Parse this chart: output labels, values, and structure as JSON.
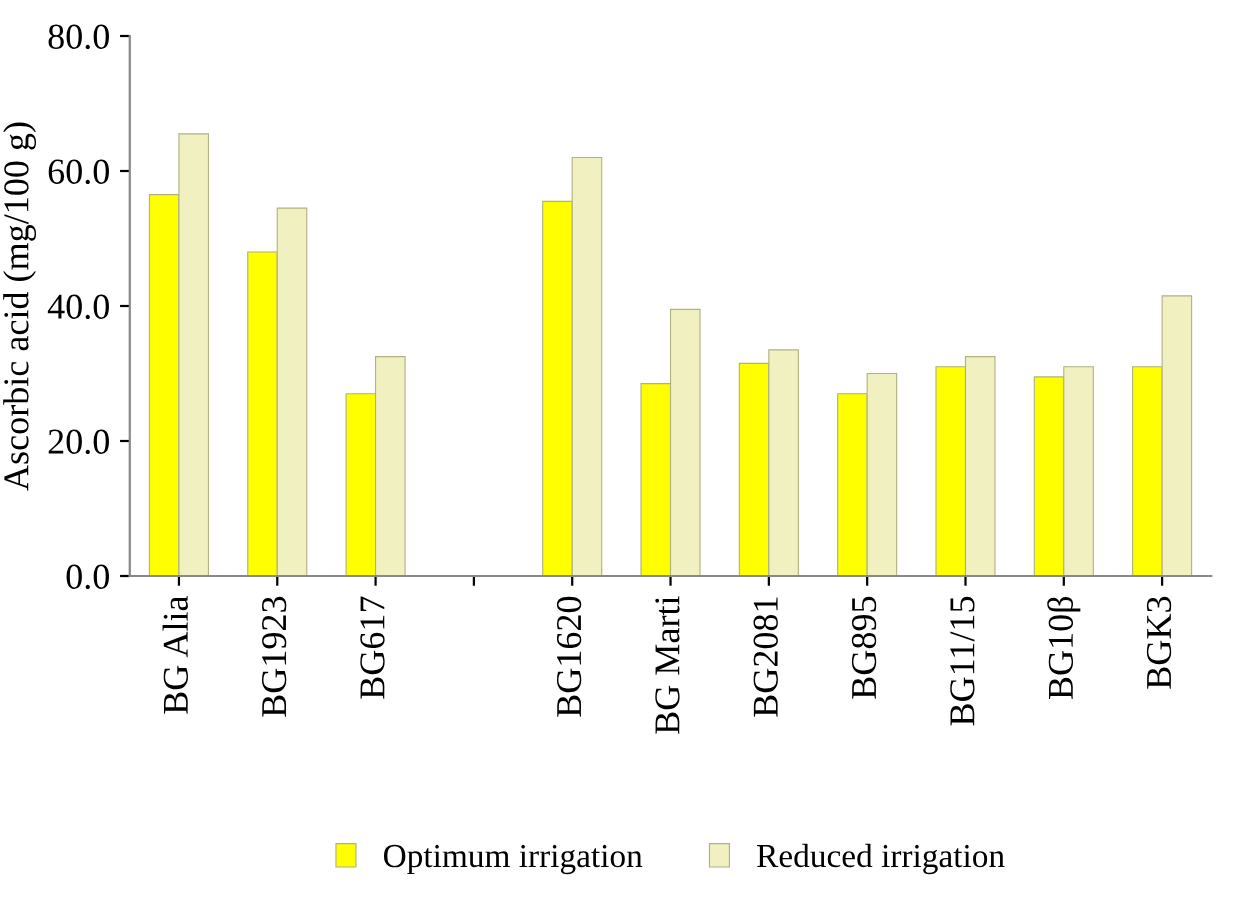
{
  "chart_data": {
    "type": "bar",
    "ylabel": "Ascorbic acid (mg/100 g)",
    "categories": [
      "BG Alia",
      "BG1923",
      "BG617",
      null,
      "BG1620",
      "BG Marti",
      "BG2081",
      "BG895",
      "BG11/15",
      "BG10β",
      "BGK3"
    ],
    "series": [
      {
        "name": "Optimum irrigation",
        "color": "#ffff00",
        "values": [
          56.5,
          48,
          27,
          null,
          55.5,
          28.5,
          31.5,
          27,
          31,
          29.5,
          31
        ]
      },
      {
        "name": "Reduced irrigation",
        "color": "#f0f0c0",
        "values": [
          65.5,
          54.5,
          32.5,
          null,
          62,
          39.5,
          33.5,
          30,
          32.5,
          31,
          41.5
        ]
      }
    ],
    "ylim": [
      0,
      80
    ],
    "yticks": [
      {
        "value": 0,
        "label": "0.0"
      },
      {
        "value": 20,
        "label": "20.0"
      },
      {
        "value": 40,
        "label": "40.0"
      },
      {
        "value": 60,
        "label": "60.0"
      },
      {
        "value": 80,
        "label": "80.0"
      }
    ],
    "grid": false,
    "legend": "bottom"
  }
}
